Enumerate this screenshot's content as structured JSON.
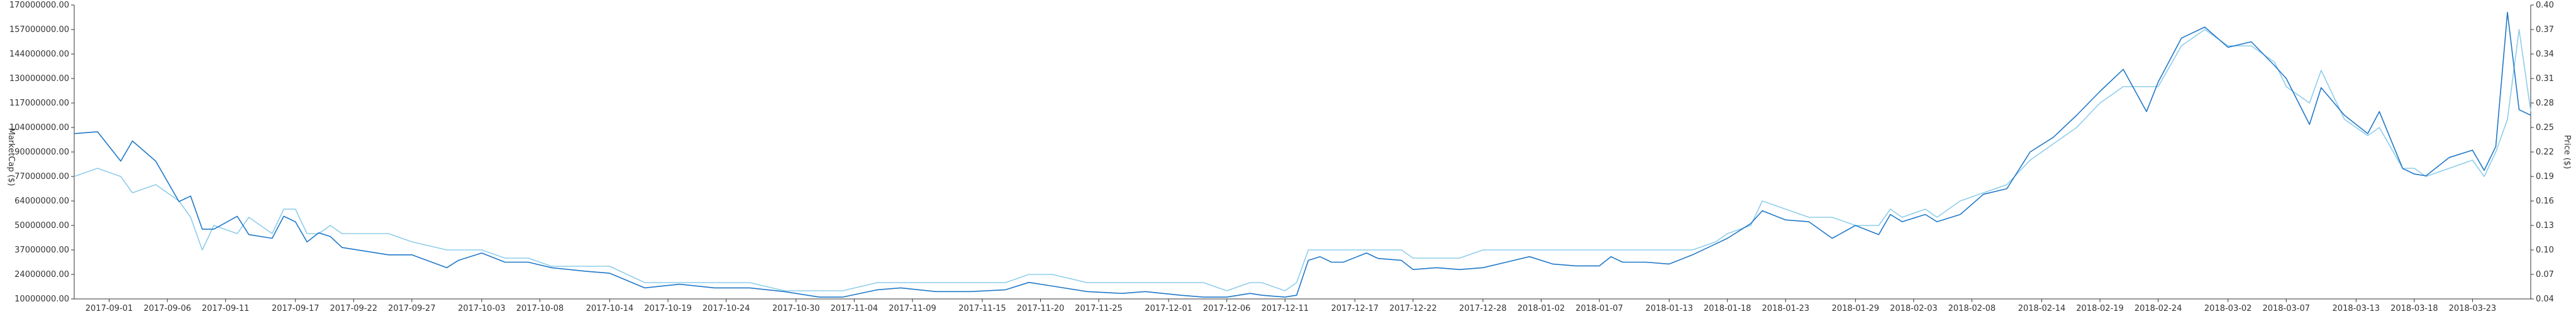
{
  "chart_data": {
    "type": "line",
    "title": "",
    "y_left_label": "MarketCap ($)",
    "y_right_label": "Price ($)",
    "y_left_ticks": [
      "10000000.00",
      "24000000.00",
      "37000000.00",
      "50000000.00",
      "64000000.00",
      "77000000.00",
      "90000000.00",
      "104000000.00",
      "117000000.00",
      "130000000.00",
      "144000000.00",
      "157000000.00",
      "170000000.00"
    ],
    "y_right_ticks": [
      "0.04",
      "0.07",
      "0.10",
      "0.13",
      "0.16",
      "0.19",
      "0.22",
      "0.25",
      "0.28",
      "0.31",
      "0.34",
      "0.37",
      "0.40"
    ],
    "x_ticks": [
      "2017-09-01",
      "2017-09-06",
      "2017-09-11",
      "2017-09-17",
      "2017-09-22",
      "2017-09-27",
      "2017-10-03",
      "2017-10-08",
      "2017-10-14",
      "2017-10-19",
      "2017-10-24",
      "2017-10-30",
      "2017-11-04",
      "2017-11-09",
      "2017-11-15",
      "2017-11-20",
      "2017-11-25",
      "2017-12-01",
      "2017-12-06",
      "2017-12-11",
      "2017-12-17",
      "2017-12-22",
      "2017-12-28",
      "2018-01-02",
      "2018-01-07",
      "2018-01-13",
      "2018-01-18",
      "2018-01-23",
      "2018-01-29",
      "2018-02-03",
      "2018-02-08",
      "2018-02-14",
      "2018-02-19",
      "2018-02-24",
      "2018-03-02",
      "2018-03-07",
      "2018-03-13",
      "2018-03-18",
      "2018-03-23"
    ],
    "ylim_left": [
      10000000,
      170000000
    ],
    "ylim_right": [
      0.04,
      0.4
    ],
    "x_start": "2017-08-29",
    "x_end": "2018-03-28",
    "grid": false,
    "series": [
      {
        "name": "",
        "color": "#1f78c8",
        "axis": "left",
        "points": [
          [
            "2017-08-29",
            100000000
          ],
          [
            "2017-08-31",
            101000000
          ],
          [
            "2017-09-02",
            85000000
          ],
          [
            "2017-09-03",
            96000000
          ],
          [
            "2017-09-05",
            85000000
          ],
          [
            "2017-09-07",
            63000000
          ],
          [
            "2017-09-08",
            66000000
          ],
          [
            "2017-09-09",
            48000000
          ],
          [
            "2017-09-10",
            48000000
          ],
          [
            "2017-09-12",
            55000000
          ],
          [
            "2017-09-13",
            45000000
          ],
          [
            "2017-09-15",
            43000000
          ],
          [
            "2017-09-16",
            55000000
          ],
          [
            "2017-09-17",
            52000000
          ],
          [
            "2017-09-18",
            41000000
          ],
          [
            "2017-09-19",
            46000000
          ],
          [
            "2017-09-20",
            44000000
          ],
          [
            "2017-09-21",
            38000000
          ],
          [
            "2017-09-23",
            36000000
          ],
          [
            "2017-09-25",
            34000000
          ],
          [
            "2017-09-27",
            34000000
          ],
          [
            "2017-09-30",
            27000000
          ],
          [
            "2017-10-01",
            31000000
          ],
          [
            "2017-10-03",
            35000000
          ],
          [
            "2017-10-05",
            30000000
          ],
          [
            "2017-10-07",
            30000000
          ],
          [
            "2017-10-09",
            27000000
          ],
          [
            "2017-10-12",
            25000000
          ],
          [
            "2017-10-14",
            24000000
          ],
          [
            "2017-10-17",
            16000000
          ],
          [
            "2017-10-20",
            18000000
          ],
          [
            "2017-10-23",
            16000000
          ],
          [
            "2017-10-26",
            16000000
          ],
          [
            "2017-10-29",
            14000000
          ],
          [
            "2017-11-01",
            11000000
          ],
          [
            "2017-11-03",
            11000000
          ],
          [
            "2017-11-06",
            15000000
          ],
          [
            "2017-11-08",
            16000000
          ],
          [
            "2017-11-11",
            14000000
          ],
          [
            "2017-11-14",
            14000000
          ],
          [
            "2017-11-17",
            15000000
          ],
          [
            "2017-11-19",
            19000000
          ],
          [
            "2017-11-21",
            17000000
          ],
          [
            "2017-11-24",
            14000000
          ],
          [
            "2017-11-27",
            13000000
          ],
          [
            "2017-11-29",
            14000000
          ],
          [
            "2017-12-02",
            12000000
          ],
          [
            "2017-12-04",
            11000000
          ],
          [
            "2017-12-06",
            11000000
          ],
          [
            "2017-12-08",
            13000000
          ],
          [
            "2017-12-09",
            12000000
          ],
          [
            "2017-12-11",
            11000000
          ],
          [
            "2017-12-12",
            12000000
          ],
          [
            "2017-12-13",
            31000000
          ],
          [
            "2017-12-14",
            33000000
          ],
          [
            "2017-12-15",
            30000000
          ],
          [
            "2017-12-16",
            30000000
          ],
          [
            "2017-12-18",
            35000000
          ],
          [
            "2017-12-19",
            32000000
          ],
          [
            "2017-12-21",
            31000000
          ],
          [
            "2017-12-22",
            26000000
          ],
          [
            "2017-12-24",
            27000000
          ],
          [
            "2017-12-26",
            26000000
          ],
          [
            "2017-12-28",
            27000000
          ],
          [
            "2017-12-30",
            30000000
          ],
          [
            "2018-01-01",
            33000000
          ],
          [
            "2018-01-03",
            29000000
          ],
          [
            "2018-01-05",
            28000000
          ],
          [
            "2018-01-07",
            28000000
          ],
          [
            "2018-01-08",
            33000000
          ],
          [
            "2018-01-09",
            30000000
          ],
          [
            "2018-01-11",
            30000000
          ],
          [
            "2018-01-13",
            29000000
          ],
          [
            "2018-01-15",
            34000000
          ],
          [
            "2018-01-17",
            40000000
          ],
          [
            "2018-01-18",
            43000000
          ],
          [
            "2018-01-20",
            51000000
          ],
          [
            "2018-01-21",
            58000000
          ],
          [
            "2018-01-23",
            53000000
          ],
          [
            "2018-01-25",
            52000000
          ],
          [
            "2018-01-27",
            43000000
          ],
          [
            "2018-01-29",
            50000000
          ],
          [
            "2018-01-31",
            45000000
          ],
          [
            "2018-02-01",
            56000000
          ],
          [
            "2018-02-02",
            52000000
          ],
          [
            "2018-02-04",
            56000000
          ],
          [
            "2018-02-05",
            52000000
          ],
          [
            "2018-02-07",
            56000000
          ],
          [
            "2018-02-09",
            67000000
          ],
          [
            "2018-02-11",
            70000000
          ],
          [
            "2018-02-13",
            90000000
          ],
          [
            "2018-02-15",
            98000000
          ],
          [
            "2018-02-17",
            110000000
          ],
          [
            "2018-02-19",
            123000000
          ],
          [
            "2018-02-21",
            135000000
          ],
          [
            "2018-02-23",
            112000000
          ],
          [
            "2018-02-24",
            128000000
          ],
          [
            "2018-02-26",
            152000000
          ],
          [
            "2018-02-28",
            158000000
          ],
          [
            "2018-03-02",
            147000000
          ],
          [
            "2018-03-04",
            150000000
          ],
          [
            "2018-03-06",
            137000000
          ],
          [
            "2018-03-07",
            130000000
          ],
          [
            "2018-03-09",
            105000000
          ],
          [
            "2018-03-10",
            125000000
          ],
          [
            "2018-03-12",
            110000000
          ],
          [
            "2018-03-14",
            100000000
          ],
          [
            "2018-03-15",
            112000000
          ],
          [
            "2018-03-17",
            81000000
          ],
          [
            "2018-03-18",
            78000000
          ],
          [
            "2018-03-19",
            77000000
          ],
          [
            "2018-03-21",
            87000000
          ],
          [
            "2018-03-23",
            91000000
          ],
          [
            "2018-03-24",
            80000000
          ],
          [
            "2018-03-25",
            93000000
          ],
          [
            "2018-03-26",
            166000000
          ],
          [
            "2018-03-27",
            113000000
          ],
          [
            "2018-03-28",
            110000000
          ]
        ]
      },
      {
        "name": "",
        "color": "#8ecdea",
        "axis": "right",
        "points": [
          [
            "2017-08-29",
            0.19
          ],
          [
            "2017-08-31",
            0.2
          ],
          [
            "2017-09-02",
            0.19
          ],
          [
            "2017-09-03",
            0.17
          ],
          [
            "2017-09-05",
            0.18
          ],
          [
            "2017-09-07",
            0.16
          ],
          [
            "2017-09-08",
            0.14
          ],
          [
            "2017-09-09",
            0.1
          ],
          [
            "2017-09-10",
            0.13
          ],
          [
            "2017-09-12",
            0.12
          ],
          [
            "2017-09-13",
            0.14
          ],
          [
            "2017-09-15",
            0.12
          ],
          [
            "2017-09-16",
            0.15
          ],
          [
            "2017-09-17",
            0.15
          ],
          [
            "2017-09-18",
            0.12
          ],
          [
            "2017-09-19",
            0.12
          ],
          [
            "2017-09-20",
            0.13
          ],
          [
            "2017-09-21",
            0.12
          ],
          [
            "2017-09-23",
            0.12
          ],
          [
            "2017-09-25",
            0.12
          ],
          [
            "2017-09-27",
            0.11
          ],
          [
            "2017-09-30",
            0.1
          ],
          [
            "2017-10-01",
            0.1
          ],
          [
            "2017-10-03",
            0.1
          ],
          [
            "2017-10-05",
            0.09
          ],
          [
            "2017-10-07",
            0.09
          ],
          [
            "2017-10-09",
            0.08
          ],
          [
            "2017-10-12",
            0.08
          ],
          [
            "2017-10-14",
            0.08
          ],
          [
            "2017-10-17",
            0.06
          ],
          [
            "2017-10-20",
            0.06
          ],
          [
            "2017-10-23",
            0.06
          ],
          [
            "2017-10-26",
            0.06
          ],
          [
            "2017-10-29",
            0.05
          ],
          [
            "2017-11-01",
            0.05
          ],
          [
            "2017-11-03",
            0.05
          ],
          [
            "2017-11-06",
            0.06
          ],
          [
            "2017-11-08",
            0.06
          ],
          [
            "2017-11-11",
            0.06
          ],
          [
            "2017-11-14",
            0.06
          ],
          [
            "2017-11-17",
            0.06
          ],
          [
            "2017-11-19",
            0.07
          ],
          [
            "2017-11-21",
            0.07
          ],
          [
            "2017-11-24",
            0.06
          ],
          [
            "2017-11-27",
            0.06
          ],
          [
            "2017-11-29",
            0.06
          ],
          [
            "2017-12-02",
            0.06
          ],
          [
            "2017-12-04",
            0.06
          ],
          [
            "2017-12-06",
            0.05
          ],
          [
            "2017-12-08",
            0.06
          ],
          [
            "2017-12-09",
            0.06
          ],
          [
            "2017-12-11",
            0.05
          ],
          [
            "2017-12-12",
            0.06
          ],
          [
            "2017-12-13",
            0.1
          ],
          [
            "2017-12-14",
            0.1
          ],
          [
            "2017-12-15",
            0.1
          ],
          [
            "2017-12-16",
            0.1
          ],
          [
            "2017-12-18",
            0.1
          ],
          [
            "2017-12-19",
            0.1
          ],
          [
            "2017-12-21",
            0.1
          ],
          [
            "2017-12-22",
            0.09
          ],
          [
            "2017-12-24",
            0.09
          ],
          [
            "2017-12-26",
            0.09
          ],
          [
            "2017-12-28",
            0.1
          ],
          [
            "2017-12-30",
            0.1
          ],
          [
            "2018-01-01",
            0.1
          ],
          [
            "2018-01-03",
            0.1
          ],
          [
            "2018-01-05",
            0.1
          ],
          [
            "2018-01-07",
            0.1
          ],
          [
            "2018-01-08",
            0.1
          ],
          [
            "2018-01-09",
            0.1
          ],
          [
            "2018-01-11",
            0.1
          ],
          [
            "2018-01-13",
            0.1
          ],
          [
            "2018-01-15",
            0.1
          ],
          [
            "2018-01-17",
            0.11
          ],
          [
            "2018-01-18",
            0.12
          ],
          [
            "2018-01-20",
            0.13
          ],
          [
            "2018-01-21",
            0.16
          ],
          [
            "2018-01-23",
            0.15
          ],
          [
            "2018-01-25",
            0.14
          ],
          [
            "2018-01-27",
            0.14
          ],
          [
            "2018-01-29",
            0.13
          ],
          [
            "2018-01-31",
            0.13
          ],
          [
            "2018-02-01",
            0.15
          ],
          [
            "2018-02-02",
            0.14
          ],
          [
            "2018-02-04",
            0.15
          ],
          [
            "2018-02-05",
            0.14
          ],
          [
            "2018-02-07",
            0.16
          ],
          [
            "2018-02-09",
            0.17
          ],
          [
            "2018-02-11",
            0.18
          ],
          [
            "2018-02-13",
            0.21
          ],
          [
            "2018-02-15",
            0.23
          ],
          [
            "2018-02-17",
            0.25
          ],
          [
            "2018-02-19",
            0.28
          ],
          [
            "2018-02-21",
            0.3
          ],
          [
            "2018-02-23",
            0.3
          ],
          [
            "2018-02-24",
            0.3
          ],
          [
            "2018-02-26",
            0.35
          ],
          [
            "2018-02-28",
            0.37
          ],
          [
            "2018-03-02",
            0.35
          ],
          [
            "2018-03-04",
            0.35
          ],
          [
            "2018-03-06",
            0.33
          ],
          [
            "2018-03-07",
            0.3
          ],
          [
            "2018-03-09",
            0.28
          ],
          [
            "2018-03-10",
            0.32
          ],
          [
            "2018-03-12",
            0.26
          ],
          [
            "2018-03-14",
            0.24
          ],
          [
            "2018-03-15",
            0.25
          ],
          [
            "2018-03-17",
            0.2
          ],
          [
            "2018-03-18",
            0.2
          ],
          [
            "2018-03-19",
            0.19
          ],
          [
            "2018-03-21",
            0.2
          ],
          [
            "2018-03-23",
            0.21
          ],
          [
            "2018-03-24",
            0.19
          ],
          [
            "2018-03-25",
            0.22
          ],
          [
            "2018-03-26",
            0.26
          ],
          [
            "2018-03-27",
            0.37
          ],
          [
            "2018-03-28",
            0.27
          ]
        ]
      }
    ]
  }
}
